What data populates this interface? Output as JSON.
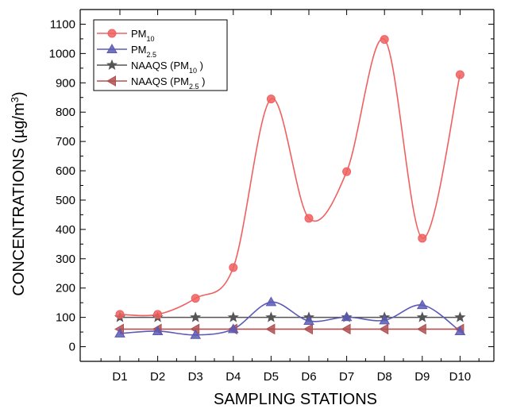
{
  "chart_data": {
    "type": "line",
    "title": "",
    "xlabel": "SAMPLING STATIONS",
    "ylabel": "CONCENTRATIONS (µg/m³)",
    "ylabel_parts": {
      "main": "CONCENTRATIONS (µg/m",
      "sup": "3",
      "end": ")"
    },
    "categories": [
      "D1",
      "D2",
      "D3",
      "D4",
      "D5",
      "D6",
      "D7",
      "D8",
      "D9",
      "D10"
    ],
    "ylim": [
      -50,
      1150
    ],
    "yticks": [
      0,
      100,
      200,
      300,
      400,
      500,
      600,
      700,
      800,
      900,
      1000,
      1100
    ],
    "grid": false,
    "legend_position": "top-left",
    "series": [
      {
        "name": "PM10",
        "label_main": "PM",
        "label_sub": "10",
        "label_end": "",
        "color": "#f06060",
        "marker": "circle",
        "smooth": true,
        "values": [
          110,
          110,
          165,
          270,
          845,
          438,
          597,
          1048,
          370,
          928
        ]
      },
      {
        "name": "PM2.5",
        "label_main": "PM",
        "label_sub": "2.5",
        "label_end": "",
        "color": "#5b5bb5",
        "marker": "triangle-up",
        "smooth": true,
        "values": [
          45,
          53,
          40,
          60,
          152,
          88,
          101,
          90,
          142,
          53
        ]
      },
      {
        "name": "NAAQS (PM10 )",
        "label_main": "NAAQS (PM",
        "label_sub": "10",
        "label_end": " )",
        "color": "#555555",
        "marker": "star",
        "smooth": false,
        "values": [
          100,
          100,
          100,
          100,
          100,
          100,
          100,
          100,
          100,
          100
        ]
      },
      {
        "name": "NAAQS (PM2.5 )",
        "label_main": "NAAQS (PM",
        "label_sub": "2.5",
        "label_end": "  )",
        "color": "#b05050",
        "marker": "triangle-left",
        "smooth": false,
        "values": [
          60,
          60,
          60,
          60,
          60,
          60,
          60,
          60,
          60,
          60
        ]
      }
    ]
  }
}
